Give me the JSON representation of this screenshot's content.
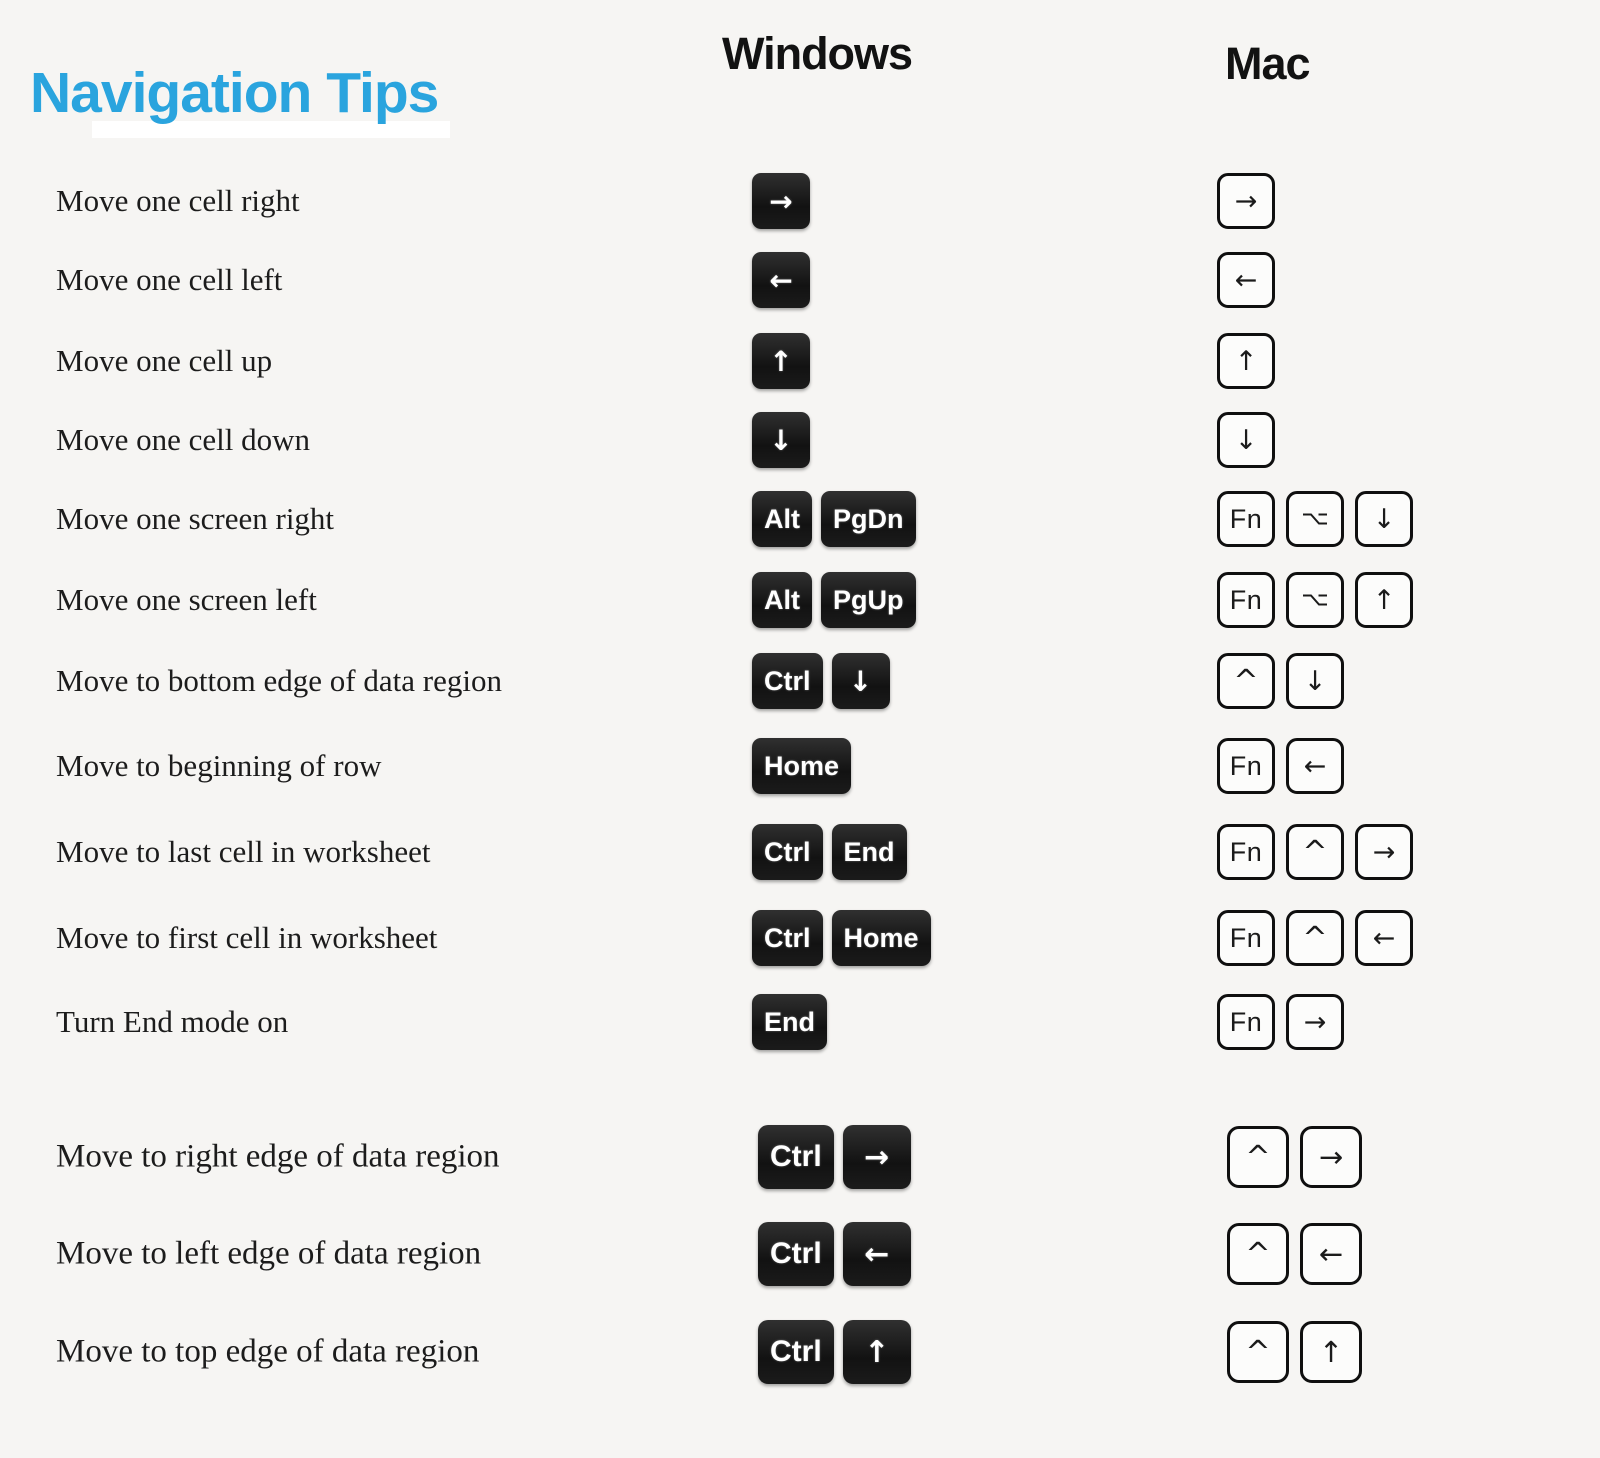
{
  "title": "Navigation Tips",
  "headers": {
    "windows": "Windows",
    "mac": "Mac"
  },
  "colors": {
    "title_accent": "#2aa4de",
    "windows_key_bg": "#1a1a1a",
    "windows_key_text": "#ffffff",
    "mac_key_bg": "#fcfcfb",
    "mac_key_border": "#0f0f0f",
    "background": "#f6f5f3"
  },
  "rows": [
    {
      "action": "Move one cell right",
      "windows": [
        {
          "name": "arrow-right",
          "glyph": "→"
        }
      ],
      "mac": [
        {
          "name": "arrow-right",
          "glyph": "→"
        }
      ]
    },
    {
      "action": "Move one cell left",
      "windows": [
        {
          "name": "arrow-left",
          "glyph": "←"
        }
      ],
      "mac": [
        {
          "name": "arrow-left",
          "glyph": "←"
        }
      ]
    },
    {
      "action": "Move one cell up",
      "windows": [
        {
          "name": "arrow-up",
          "glyph": "↑"
        }
      ],
      "mac": [
        {
          "name": "arrow-up",
          "glyph": "↑"
        }
      ]
    },
    {
      "action": "Move one cell down",
      "windows": [
        {
          "name": "arrow-down",
          "glyph": "↓"
        }
      ],
      "mac": [
        {
          "name": "arrow-down",
          "glyph": "↓"
        }
      ]
    },
    {
      "action": "Move one screen right",
      "windows": [
        {
          "name": "alt",
          "glyph": "Alt"
        },
        {
          "name": "page-down",
          "glyph": "PgDn"
        }
      ],
      "mac": [
        {
          "name": "fn",
          "glyph": "Fn"
        },
        {
          "name": "option",
          "glyph": "option"
        },
        {
          "name": "arrow-down",
          "glyph": "↓"
        }
      ]
    },
    {
      "action": "Move one screen left",
      "windows": [
        {
          "name": "alt",
          "glyph": "Alt"
        },
        {
          "name": "page-up",
          "glyph": "PgUp"
        }
      ],
      "mac": [
        {
          "name": "fn",
          "glyph": "Fn"
        },
        {
          "name": "option",
          "glyph": "option"
        },
        {
          "name": "arrow-up",
          "glyph": "↑"
        }
      ]
    },
    {
      "action": "Move to bottom edge of data region",
      "windows": [
        {
          "name": "ctrl",
          "glyph": "Ctrl"
        },
        {
          "name": "arrow-down",
          "glyph": "↓"
        }
      ],
      "mac": [
        {
          "name": "control",
          "glyph": "^"
        },
        {
          "name": "arrow-down",
          "glyph": "↓"
        }
      ]
    },
    {
      "action": "Move to beginning of row",
      "windows": [
        {
          "name": "home",
          "glyph": "Home"
        }
      ],
      "mac": [
        {
          "name": "fn",
          "glyph": "Fn"
        },
        {
          "name": "arrow-left",
          "glyph": "←"
        }
      ]
    },
    {
      "action": "Move to last cell in worksheet",
      "windows": [
        {
          "name": "ctrl",
          "glyph": "Ctrl"
        },
        {
          "name": "end",
          "glyph": "End"
        }
      ],
      "mac": [
        {
          "name": "fn",
          "glyph": "Fn"
        },
        {
          "name": "control",
          "glyph": "^"
        },
        {
          "name": "arrow-right",
          "glyph": "→"
        }
      ]
    },
    {
      "action": "Move to first cell in worksheet",
      "windows": [
        {
          "name": "ctrl",
          "glyph": "Ctrl"
        },
        {
          "name": "home",
          "glyph": "Home"
        }
      ],
      "mac": [
        {
          "name": "fn",
          "glyph": "Fn"
        },
        {
          "name": "control",
          "glyph": "^"
        },
        {
          "name": "arrow-left",
          "glyph": "←"
        }
      ]
    },
    {
      "action": "Turn End mode on",
      "windows": [
        {
          "name": "end",
          "glyph": "End"
        }
      ],
      "mac": [
        {
          "name": "fn",
          "glyph": "Fn"
        },
        {
          "name": "arrow-right",
          "glyph": "→"
        }
      ]
    },
    {
      "action": "Move to right edge of data region",
      "windows": [
        {
          "name": "ctrl",
          "glyph": "Ctrl"
        },
        {
          "name": "arrow-right",
          "glyph": "→"
        }
      ],
      "mac": [
        {
          "name": "control",
          "glyph": "^"
        },
        {
          "name": "arrow-right",
          "glyph": "→"
        }
      ]
    },
    {
      "action": "Move to left edge of data region",
      "windows": [
        {
          "name": "ctrl",
          "glyph": "Ctrl"
        },
        {
          "name": "arrow-left",
          "glyph": "←"
        }
      ],
      "mac": [
        {
          "name": "control",
          "glyph": "^"
        },
        {
          "name": "arrow-left",
          "glyph": "←"
        }
      ]
    },
    {
      "action": "Move to top edge of data region",
      "windows": [
        {
          "name": "ctrl",
          "glyph": "Ctrl"
        },
        {
          "name": "arrow-up",
          "glyph": "↑"
        }
      ],
      "mac": [
        {
          "name": "control",
          "glyph": "^"
        },
        {
          "name": "arrow-up",
          "glyph": "↑"
        }
      ]
    }
  ]
}
